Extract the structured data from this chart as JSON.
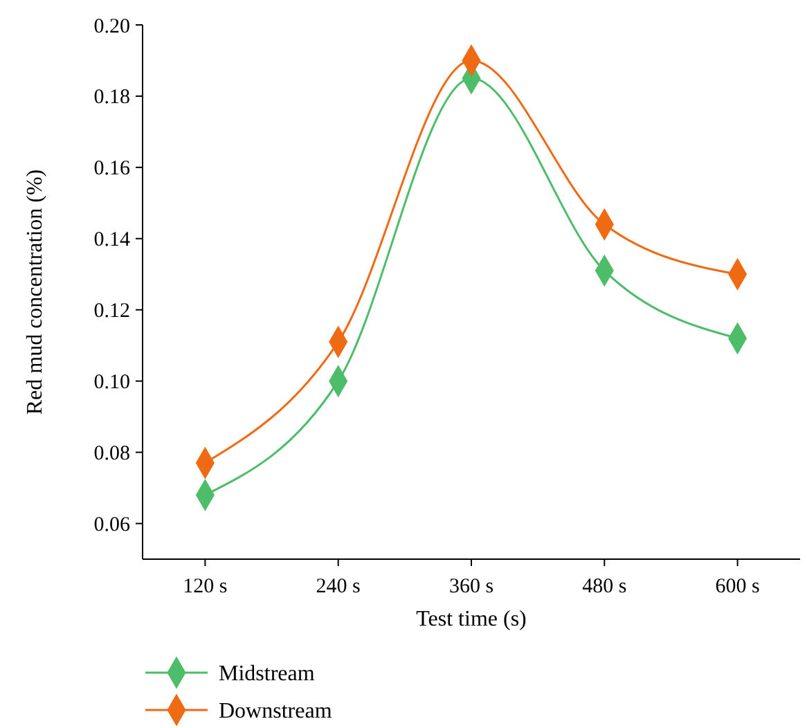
{
  "chart_data": {
    "type": "line",
    "xlabel": "Test time (s)",
    "ylabel": "Red mud concentration (%)",
    "categories": [
      "120 s",
      "240 s",
      "360 s",
      "480 s",
      "600 s"
    ],
    "series": [
      {
        "name": "Midstream",
        "color": "#4dbd6a",
        "values": [
          0.068,
          0.1,
          0.185,
          0.131,
          0.112
        ]
      },
      {
        "name": "Downstream",
        "color": "#f06a14",
        "values": [
          0.077,
          0.111,
          0.19,
          0.144,
          0.13
        ]
      }
    ],
    "ylim": [
      0.05,
      0.2
    ],
    "yticks": [
      {
        "value": 0.06,
        "label": "0.06"
      },
      {
        "value": 0.08,
        "label": "0.08"
      },
      {
        "value": 0.1,
        "label": "0.10"
      },
      {
        "value": 0.12,
        "label": "0.12"
      },
      {
        "value": 0.14,
        "label": "0.14"
      },
      {
        "value": 0.16,
        "label": "0.16"
      },
      {
        "value": 0.18,
        "label": "0.18"
      },
      {
        "value": 0.2,
        "label": "0.20"
      }
    ],
    "marker": "diamond",
    "line_style": "solid",
    "grid": false,
    "legend": "bottom left"
  }
}
